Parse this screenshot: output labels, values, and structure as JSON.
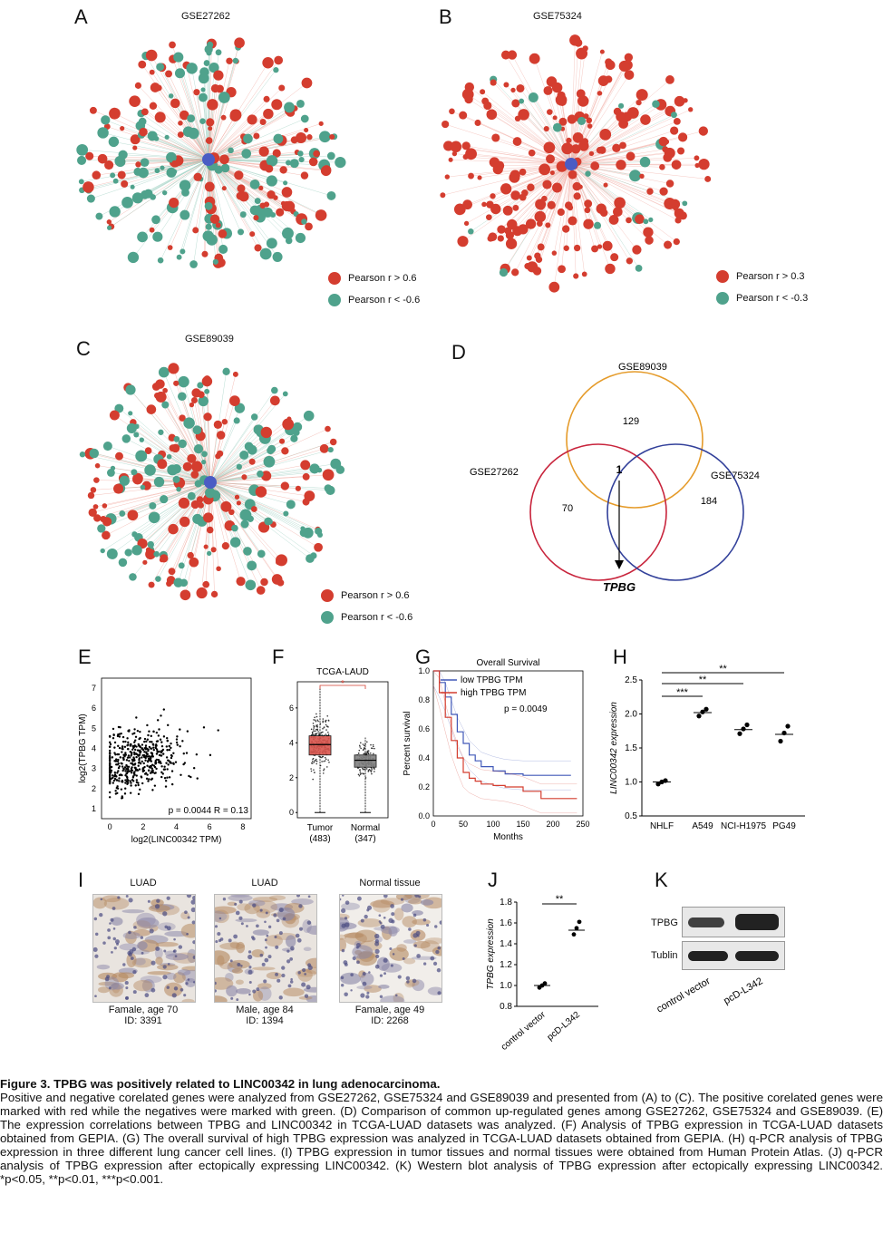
{
  "panels": {
    "a": {
      "letter": "A",
      "title": "GSE27262",
      "legend_pos": "Pearson r > 0.6",
      "legend_neg": "Pearson r < -0.6",
      "node_count": 260
    },
    "b": {
      "letter": "B",
      "title": "GSE75324",
      "legend_pos": "Pearson r > 0.3",
      "legend_neg": "Pearson r < -0.3",
      "node_count": 240
    },
    "c": {
      "letter": "C",
      "title": "GSE89039",
      "legend_pos": "Pearson r > 0.6",
      "legend_neg": "Pearson r < -0.6",
      "node_count": 250
    },
    "d": {
      "letter": "D",
      "set1": "GSE89039",
      "set2": "GSE27262",
      "set3": "GSE75324",
      "n_only1": "129",
      "n_only2": "70",
      "n_only3": "184",
      "n_all": "1",
      "result": "TPBG"
    },
    "e": {
      "letter": "E",
      "ylabel": "log2(TPBG TPM)",
      "xlabel": "log2(LINC00342 TPM)",
      "stat": "p = 0.0044 R = 0.13",
      "xticks": [
        "0",
        "2",
        "4",
        "6",
        "8"
      ],
      "yticks": [
        "1",
        "2",
        "3",
        "4",
        "5",
        "6",
        "7"
      ]
    },
    "f": {
      "letter": "F",
      "title": "TCGA-LAUD",
      "groups": [
        "Tumor",
        "Normal"
      ],
      "ns": [
        "(483)",
        "(347)"
      ],
      "yticks": [
        "0",
        "2",
        "4",
        "6"
      ],
      "sig": "*"
    },
    "g": {
      "letter": "G",
      "title": "Overall Survival",
      "legend_low": "low TPBG TPM",
      "legend_high": "high TPBG TPM",
      "pval": "p = 0.0049",
      "ylabel": "Percent survival",
      "xlabel": "Months",
      "xticks": [
        "0",
        "50",
        "100",
        "150",
        "200",
        "250"
      ],
      "yticks": [
        "0.0",
        "0.2",
        "0.4",
        "0.6",
        "0.8",
        "1.0"
      ]
    },
    "h": {
      "letter": "H",
      "ylabel": "LINC00342 expression",
      "categories": [
        "NHLF",
        "A549",
        "NCI-H1975",
        "PG49"
      ],
      "yticks": [
        "0.5",
        "1.0",
        "1.5",
        "2.0",
        "2.5"
      ],
      "sig": [
        "***",
        "**",
        "**"
      ]
    },
    "i": {
      "letter": "I",
      "images": [
        {
          "head": "LUAD",
          "cap1": "Famale, age 70",
          "cap2": "ID: 3391"
        },
        {
          "head": "LUAD",
          "cap1": "Male, age 84",
          "cap2": "ID: 1394"
        },
        {
          "head": "Normal tissue",
          "cap1": "Famale, age 49",
          "cap2": "ID: 2268"
        }
      ]
    },
    "j": {
      "letter": "J",
      "ylabel": "TPBG expression",
      "categories": [
        "control vector",
        "pcD-L342"
      ],
      "yticks": [
        "0.8",
        "1.0",
        "1.2",
        "1.4",
        "1.6",
        "1.8"
      ],
      "sig": "**"
    },
    "k": {
      "letter": "K",
      "band1": "TPBG",
      "band2": "Tublin",
      "lanes": [
        "control vector",
        "pcD-L342"
      ]
    }
  },
  "chart_data": [
    {
      "type": "scatter",
      "title": "",
      "xlabel": "log2(LINC00342 TPM)",
      "ylabel": "log2(TPBG TPM)",
      "xlim": [
        -0.5,
        8.5
      ],
      "ylim": [
        0.5,
        7.5
      ],
      "n_points": 480,
      "p": 0.0044,
      "R": 0.13
    },
    {
      "type": "box",
      "title": "TCGA-LAUD",
      "categories": [
        "Tumor",
        "Normal"
      ],
      "medians": [
        3.9,
        3.0
      ],
      "q1": [
        3.3,
        2.6
      ],
      "q3": [
        4.4,
        3.3
      ],
      "whisker_low": [
        0.0,
        0.0
      ],
      "whisker_high": [
        7.2,
        4.3
      ],
      "ylim": [
        -0.3,
        7.5
      ]
    },
    {
      "type": "line",
      "title": "Overall Survival",
      "xlabel": "Months",
      "ylabel": "Percent survival",
      "xlim": [
        0,
        250
      ],
      "ylim": [
        0,
        1
      ],
      "series": [
        {
          "name": "low TPBG TPM",
          "x": [
            0,
            10,
            20,
            30,
            40,
            50,
            60,
            70,
            80,
            100,
            120,
            150,
            180,
            230
          ],
          "y": [
            1.0,
            0.92,
            0.82,
            0.7,
            0.58,
            0.5,
            0.42,
            0.38,
            0.34,
            0.31,
            0.29,
            0.28,
            0.28,
            0.28
          ]
        },
        {
          "name": "high TPBG TPM",
          "x": [
            0,
            10,
            20,
            30,
            40,
            50,
            60,
            70,
            80,
            100,
            120,
            150,
            180,
            240
          ],
          "y": [
            1.0,
            0.85,
            0.68,
            0.52,
            0.4,
            0.3,
            0.26,
            0.24,
            0.22,
            0.21,
            0.2,
            0.17,
            0.12,
            0.12
          ]
        }
      ],
      "pval": 0.0049
    },
    {
      "type": "scatter",
      "title": "",
      "xlabel": "",
      "ylabel": "LINC00342 expression",
      "categories": [
        "NHLF",
        "A549",
        "NCI-H1975",
        "PG49"
      ],
      "means": [
        1.0,
        2.02,
        1.77,
        1.7
      ],
      "points": [
        [
          0.97,
          1.0,
          1.02
        ],
        [
          1.97,
          2.03,
          2.07
        ],
        [
          1.71,
          1.78,
          1.84
        ],
        [
          1.6,
          1.72,
          1.82
        ]
      ],
      "ylim": [
        0.5,
        2.5
      ]
    },
    {
      "type": "scatter",
      "title": "",
      "xlabel": "",
      "ylabel": "TPBG expression",
      "categories": [
        "control vector",
        "pcD-L342"
      ],
      "means": [
        1.0,
        1.53
      ],
      "points": [
        [
          0.98,
          1.0,
          1.02
        ],
        [
          1.49,
          1.55,
          1.61
        ]
      ],
      "ylim": [
        0.8,
        1.8
      ]
    }
  ],
  "caption": {
    "title": "Figure 3. TPBG was positively related to LINC00342 in lung adenocarcinoma.",
    "body": "Positive and negative corelated genes were analyzed from GSE27262, GSE75324 and GSE89039 and presented from (A) to (C). The positive corelated genes were marked with red while the negatives were marked with green. (D) Comparison of common up-regulated genes among GSE27262, GSE75324 and GSE89039. (E) The expression correlations between TPBG and LINC00342 in TCGA-LUAD datasets was analyzed. (F) Analysis of TPBG expression in TCGA-LUAD datasets obtained from GEPIA. (G) The overall survival of high TPBG expression was analyzed in TCGA-LUAD datasets obtained from GEPIA. (H) q-PCR analysis of TPBG expression in three different lung cancer cell lines. (I) TPBG expression in tumor tissues and normal tissues were obtained from Human Protein Atlas. (J) q-PCR analysis of TPBG expression after ectopically expressing LINC00342. (K) Western blot analysis of TPBG expression after ectopically expressing LINC00342. *p<0.05, **p<0.01, ***p<0.001."
  },
  "colors": {
    "red": "#d43d2f",
    "green": "#4fa28c",
    "blue": "#4058b8",
    "orange": "#e59b2a",
    "crimson": "#c8243c",
    "navy": "#32409a"
  }
}
